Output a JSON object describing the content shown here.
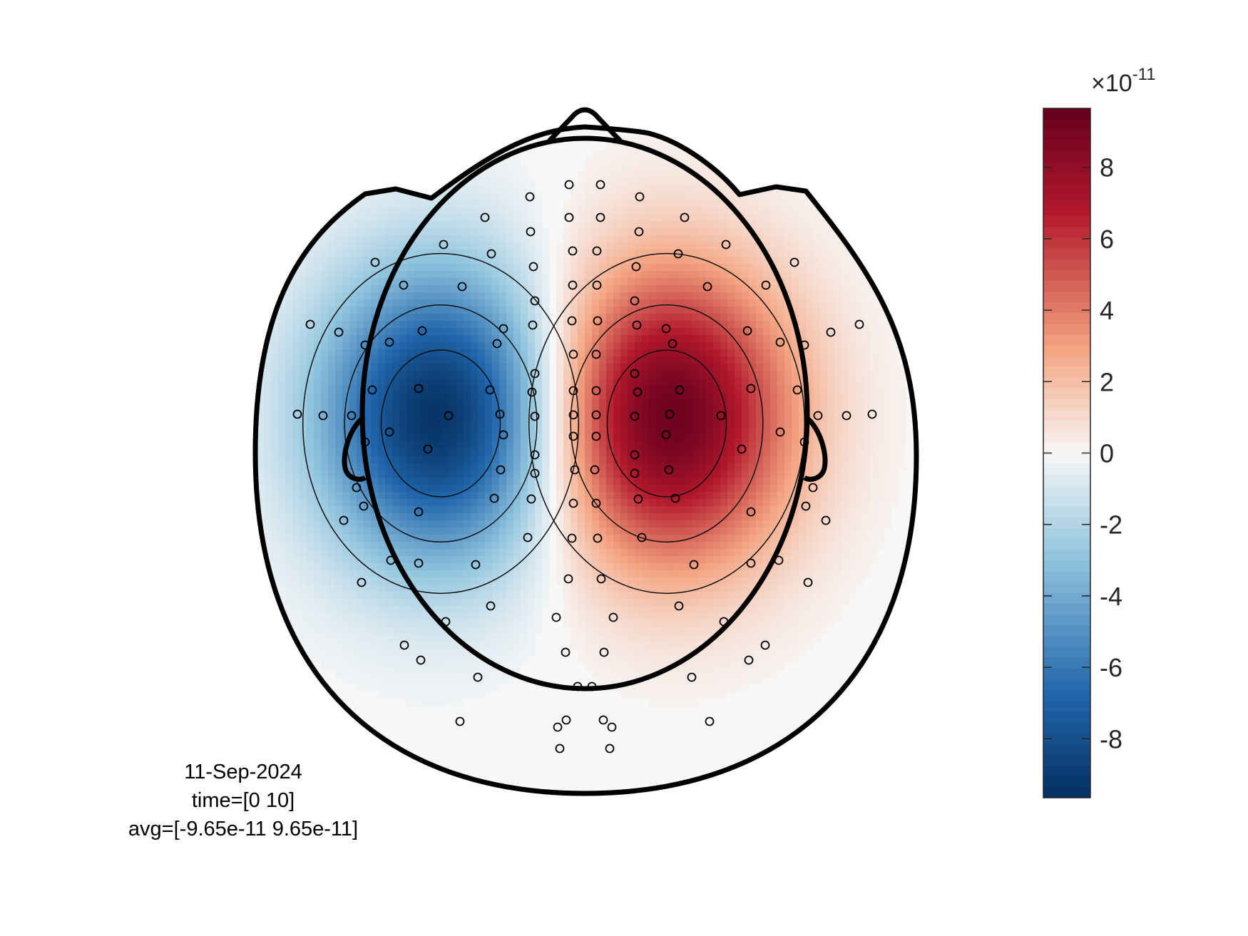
{
  "chart_data": {
    "type": "heatmap",
    "title": "",
    "xlabel": "",
    "ylabel": "",
    "colormap": "diverging red-white-blue",
    "colors": {
      "min": "#053061",
      "low": "#2166ac",
      "mid_low": "#92c5de",
      "zero": "#f7f7f7",
      "mid_high": "#f4a582",
      "high": "#b2182b",
      "max": "#67001f"
    },
    "clim": [
      -9.65e-11,
      9.65e-11
    ],
    "colorbar": {
      "multiplier": "×10",
      "exponent": "-11",
      "ticks": [
        8,
        6,
        4,
        2,
        0,
        -2,
        -4,
        -6,
        -8
      ],
      "tick_labels": [
        "8",
        "6",
        "4",
        "2",
        "0",
        "-2",
        "-4",
        "-6",
        "-8"
      ]
    },
    "sources": [
      {
        "label": "negative lobe",
        "sign": -1,
        "peak": -9.65e-11
      },
      {
        "label": "positive lobe",
        "sign": 1,
        "peak": 9.65e-11
      }
    ],
    "contour_levels": [
      -7.5e-11,
      -5e-11,
      -2.5e-11,
      2.5e-11,
      5e-11,
      7.5e-11
    ],
    "sensor_marker": "o",
    "info": {
      "date": "11-Sep-2024",
      "time": "time=[0 10]",
      "avg": "avg=[-9.65e-11 9.65e-11]"
    }
  }
}
